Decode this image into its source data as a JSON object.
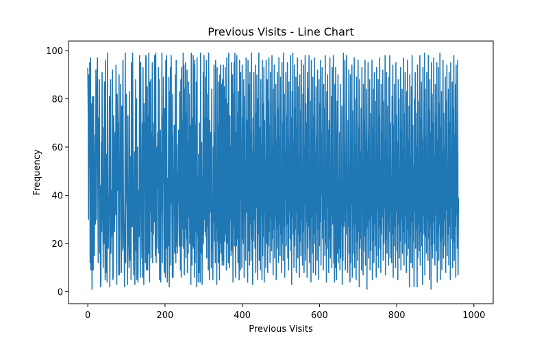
{
  "chart_data": {
    "type": "line",
    "title": "Previous Visits - Line Chart",
    "xlabel": "Previous Visits",
    "ylabel": "Frequency",
    "xlim": [
      -50,
      1050
    ],
    "ylim": [
      -5,
      104
    ],
    "xticks": [
      0,
      200,
      400,
      600,
      800,
      1000
    ],
    "yticks": [
      0,
      20,
      40,
      60,
      80,
      100
    ],
    "grid": false,
    "legend": "none",
    "series": [
      {
        "color": "#1f77b4",
        "x_start": 0,
        "x_step": 1,
        "values": [
          93,
          76,
          30,
          90,
          52,
          95,
          12,
          97,
          9,
          78,
          50,
          1,
          81,
          24,
          9,
          81,
          33,
          15,
          51,
          65,
          28,
          92,
          30,
          62,
          85,
          97,
          40,
          12,
          72,
          54,
          88,
          16,
          44,
          2,
          5,
          62,
          25,
          91,
          35,
          30,
          10,
          68,
          20,
          87,
          47,
          5,
          96,
          8,
          57,
          35,
          4,
          99,
          30,
          18,
          39,
          40,
          81,
          2,
          28,
          88,
          16,
          42,
          23,
          30,
          92,
          5,
          7,
          73,
          64,
          25,
          40,
          66,
          32,
          94,
          47,
          3,
          82,
          73,
          42,
          70,
          7,
          90,
          7,
          54,
          41,
          86,
          24,
          8,
          77,
          17,
          30,
          96,
          45,
          18,
          28,
          2,
          37,
          99,
          12,
          63,
          82,
          42,
          35,
          3,
          73,
          19,
          23,
          10,
          83,
          13,
          44,
          56,
          5,
          95,
          33,
          27,
          99,
          65,
          25,
          7,
          40,
          58,
          3,
          48,
          88,
          17,
          80,
          5,
          42,
          60,
          4,
          35,
          42,
          23,
          98,
          29,
          6,
          95,
          43,
          39,
          14,
          70,
          6,
          93,
          31,
          3,
          78,
          49,
          70,
          12,
          98,
          97,
          9,
          48,
          85,
          9,
          73,
          16,
          99,
          34,
          4,
          87,
          33,
          88,
          14,
          66,
          25,
          95,
          12,
          64,
          24,
          70,
          29,
          98,
          40,
          15,
          99,
          12,
          60,
          18,
          26,
          66,
          43,
          93,
          16,
          88,
          5,
          60,
          67,
          4,
          58,
          33,
          99,
          12,
          73,
          45,
          89,
          27,
          8,
          76,
          34,
          6,
          96,
          18,
          98,
          40,
          4,
          47,
          19,
          60,
          89,
          2,
          83,
          36,
          93,
          11,
          98,
          37,
          65,
          6,
          82,
          6,
          49,
          39,
          69,
          16,
          45,
          90,
          12,
          96,
          19,
          61,
          16,
          49,
          37,
          67,
          29,
          19,
          83,
          33,
          9,
          88,
          6,
          93,
          19,
          71,
          26,
          99,
          18,
          94,
          7,
          84,
          26,
          95,
          14,
          74,
          22,
          92,
          8,
          62,
          16,
          87,
          31,
          82,
          20,
          42,
          69,
          3,
          99,
          26,
          11,
          72,
          19,
          98,
          18,
          94,
          6,
          96,
          12,
          69,
          25,
          87,
          2,
          97,
          23,
          48,
          4,
          57,
          8,
          70,
          35,
          4,
          99,
          20,
          16,
          62,
          3,
          48,
          24,
          91,
          20,
          98,
          30,
          72,
          25,
          89,
          23,
          96,
          14,
          82,
          27,
          72,
          9,
          99,
          30,
          5,
          71,
          33,
          42,
          66,
          10,
          84,
          18,
          31,
          5,
          60,
          29,
          94,
          21,
          66,
          12,
          96,
          26,
          48,
          3,
          93,
          21,
          69,
          12,
          87,
          41,
          5,
          90,
          20,
          94,
          16,
          86,
          31,
          11,
          88,
          13,
          94,
          11,
          39,
          85,
          21,
          93,
          24,
          80,
          9,
          97,
          20,
          48,
          78,
          12,
          99,
          46,
          10,
          73,
          30,
          60,
          15,
          95,
          38,
          17,
          90,
          4,
          82,
          27,
          95,
          19,
          99,
          47,
          6,
          66,
          19,
          98,
          22,
          74,
          12,
          83,
          48,
          5,
          96,
          24,
          9,
          91,
          38,
          62,
          10,
          94,
          22,
          72,
          20,
          88,
          6,
          81,
          31,
          52,
          13,
          97,
          33,
          43,
          71,
          4,
          96,
          17,
          86,
          35,
          11,
          91,
          28,
          66,
          13,
          99,
          22,
          58,
          3,
          72,
          21,
          91,
          30,
          57,
          18,
          94,
          8,
          74,
          35,
          90,
          29,
          5,
          80,
          24,
          99,
          13,
          68,
          41,
          9,
          88,
          32,
          61,
          5,
          96,
          15,
          78,
          23,
          93,
          4,
          71,
          33,
          55,
          10,
          96,
          38,
          20,
          88,
          8,
          79,
          19,
          97,
          25,
          69,
          12,
          91,
          31,
          56,
          17,
          98,
          22,
          60,
          7,
          84,
          26,
          94,
          14,
          73,
          31,
          86,
          5,
          63,
          26,
          91,
          18,
          76,
          12,
          97,
          28,
          64,
          15,
          89,
          24,
          41,
          8,
          95,
          20,
          70,
          13,
          99,
          27,
          82,
          6,
          58,
          38,
          91,
          19,
          73,
          28,
          95,
          14,
          63,
          9,
          87,
          33,
          49,
          22,
          98,
          17,
          72,
          3,
          83,
          31,
          99,
          24,
          62,
          10,
          94,
          19,
          76,
          26,
          89,
          8,
          68,
          33,
          97,
          14,
          85,
          24,
          56,
          6,
          90,
          21,
          75,
          15,
          96,
          30,
          48,
          11,
          82,
          25,
          94,
          8,
          60,
          36,
          98,
          13,
          78,
          29,
          70,
          6,
          91,
          18,
          84,
          27,
          98,
          12,
          55,
          22,
          79,
          4,
          96,
          31,
          67,
          16,
          89,
          8,
          73,
          24,
          97,
          20,
          58,
          7,
          85,
          33,
          64,
          13,
          92,
          26,
          50,
          5,
          88,
          19,
          78,
          29,
          96,
          11,
          66,
          40,
          93,
          22,
          44,
          9,
          86,
          30,
          76,
          15,
          98,
          20,
          57,
          4,
          83,
          35,
          90,
          18,
          67,
          8,
          71,
          22,
          97,
          14,
          48,
          32,
          81,
          10,
          93,
          45,
          28,
          98,
          12,
          47,
          4,
          86,
          10,
          93,
          58,
          5,
          38,
          79,
          16,
          90,
          12,
          46,
          18,
          66,
          9,
          86,
          14,
          40,
          28,
          77,
          3,
          46,
          13,
          99,
          27,
          60,
          29,
          96,
          9,
          45,
          24,
          98,
          34,
          45,
          8,
          71,
          27,
          92,
          16,
          52,
          4,
          90,
          12,
          63,
          36,
          94,
          6,
          75,
          28,
          50,
          16,
          97,
          10,
          61,
          28,
          80,
          5,
          89,
          21,
          44,
          13,
          96,
          25,
          68,
          2,
          88,
          18,
          58,
          22,
          76,
          9,
          93,
          33,
          52,
          7,
          86,
          17,
          71,
          23,
          96,
          11,
          63,
          26,
          84,
          1,
          58,
          27,
          95,
          14,
          65,
          30,
          88,
          9,
          74,
          17,
          51,
          32,
          96,
          5,
          68,
          21,
          84,
          12,
          91,
          28,
          57,
          19,
          79,
          6,
          93,
          15,
          61,
          34,
          88,
          10,
          73,
          27,
          97,
          18,
          54,
          8,
          86,
          24,
          66,
          31,
          92,
          13,
          79,
          20,
          48,
          35,
          98,
          7,
          63,
          22,
          91,
          16,
          77,
          29,
          55,
          11,
          89,
          25,
          98,
          14,
          70,
          33,
          46,
          12,
          81,
          24,
          94,
          6,
          69,
          19,
          86,
          27,
          58,
          10,
          95,
          33,
          73,
          17,
          62,
          5,
          88,
          28,
          80,
          14,
          51,
          21,
          93,
          9,
          67,
          30,
          84,
          16,
          59,
          25,
          97,
          11,
          74,
          20,
          91,
          32,
          53,
          8,
          83,
          15,
          96,
          26,
          63,
          18,
          77,
          2,
          90,
          23,
          56,
          12,
          85,
          29,
          98,
          10,
          69,
          21,
          52,
          2,
          80,
          33,
          91,
          18,
          74,
          26,
          60,
          2,
          94,
          14,
          79,
          28,
          49,
          17,
          98,
          11,
          72,
          25,
          87,
          19,
          63,
          3,
          93,
          32,
          55,
          24,
          99,
          7,
          84,
          23,
          64,
          16,
          91,
          30,
          48,
          13,
          98,
          22,
          75,
          5,
          88,
          27,
          66,
          1,
          95,
          19,
          82,
          14,
          70,
          29,
          97,
          20,
          56,
          11,
          86,
          32,
          73,
          17,
          95,
          4,
          63,
          24,
          93,
          13,
          78,
          28,
          99,
          5,
          68,
          21,
          83,
          9,
          58,
          23,
          96,
          14,
          74,
          30,
          60,
          19,
          89,
          8,
          79,
          34,
          94,
          15,
          53,
          24,
          84,
          11,
          91,
          27,
          70,
          5,
          95,
          35,
          59,
          22,
          87,
          10,
          76,
          21,
          98,
          13,
          65,
          27,
          86,
          6,
          94,
          32,
          57,
          18,
          96,
          7,
          39
        ]
      }
    ]
  }
}
